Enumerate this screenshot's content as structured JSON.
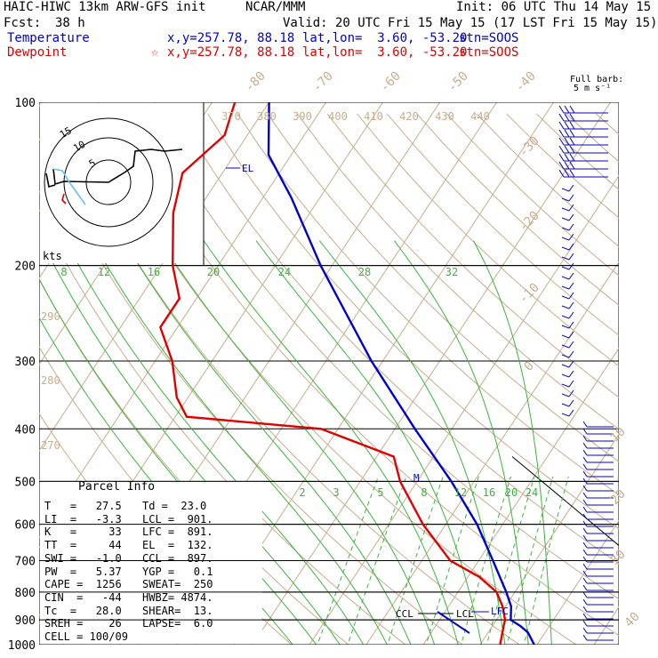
{
  "header": {
    "model": "HAIC-HIWC 13km ARW-GFS init",
    "org": "NCAR/MMM",
    "init": "Init: 06 UTC Thu 14 May 15",
    "fcst_label": "Fcst:",
    "fcst_value": "38 h",
    "valid": "Valid: 20 UTC Fri 15 May 15 (17 LST Fri 15 May 15)"
  },
  "legend": {
    "temperature": {
      "label": "Temperature",
      "xy": "x,y=257.78, 88.18",
      "latlon": "lat,lon=  3.60, -53.20",
      "stn": "stn=SOOS",
      "color": "#0000cc"
    },
    "dewpoint": {
      "label": "Dewpoint",
      "marker": "☆",
      "xy": "x,y=257.78, 88.18",
      "latlon": "lat,lon=  3.60, -53.20",
      "stn": "stn=SOOS",
      "color": "#e00000"
    }
  },
  "barb_legend": {
    "line1": "Full barb:",
    "line2": "5 m s⁻¹"
  },
  "hodograph": {
    "rings": [
      "5",
      "10",
      "15"
    ],
    "units": "kts"
  },
  "parcel": {
    "title": "Parcel Info",
    "rows": [
      [
        "T   =   27.5",
        "Td =  23.0"
      ],
      [
        "LI  =   -3.3",
        "LCL =  901."
      ],
      [
        "K   =     33",
        "LFC =  891."
      ],
      [
        "TT  =     44",
        "EL  =  132."
      ],
      [
        "SWI =   -1.0",
        "CCL =  897."
      ],
      [
        "PW  =   5.37",
        "YGP =   0.1"
      ],
      [
        "CAPE =  1256",
        "SWEAT=  250"
      ],
      [
        "CIN  =   -44",
        "HWBZ= 4874."
      ],
      [
        "Tc  =   28.0",
        "SHEAR=  13."
      ],
      [
        "SREH =    26",
        "LAPSE=  6.0"
      ],
      [
        "CELL = 100/09",
        ""
      ]
    ]
  },
  "labels": {
    "el": "EL",
    "ccl": "CCL",
    "lcl": "LCL",
    "lfc": "LFC",
    "m": "M"
  },
  "chart_data": {
    "type": "line",
    "title": "",
    "xlabel": "",
    "ylabel": "",
    "pressure_levels": [
      100,
      200,
      300,
      400,
      500,
      600,
      700,
      800,
      900,
      1000
    ],
    "isotherms": [
      -80,
      -70,
      -60,
      -50,
      -40,
      -30,
      -20,
      -10,
      0,
      10,
      20,
      30,
      40
    ],
    "theta_labels": [
      370,
      380,
      390,
      400,
      410,
      420,
      430,
      440
    ],
    "theta_left_labels": [
      290,
      280,
      270
    ],
    "mixing_ratio_upper": [
      8,
      12,
      16,
      20,
      24,
      28,
      32
    ],
    "mixing_ratio_lower": [
      2,
      3,
      5,
      8,
      12,
      16,
      20,
      24
    ],
    "series": [
      {
        "name": "Temperature",
        "color": "#0000cc",
        "points": [
          [
            1000,
            29.5
          ],
          [
            950,
            27
          ],
          [
            925,
            25
          ],
          [
            900,
            22.5
          ],
          [
            850,
            21
          ],
          [
            800,
            18.5
          ],
          [
            700,
            12.5
          ],
          [
            600,
            5.5
          ],
          [
            500,
            -4
          ],
          [
            400,
            -16.5
          ],
          [
            300,
            -32
          ],
          [
            250,
            -41
          ],
          [
            200,
            -52
          ],
          [
            150,
            -65
          ],
          [
            125,
            -74
          ],
          [
            100,
            -80
          ]
        ]
      },
      {
        "name": "Dewpoint",
        "color": "#e00000",
        "points": [
          [
            1000,
            23.5
          ],
          [
            925,
            22
          ],
          [
            900,
            21.5
          ],
          [
            850,
            19.5
          ],
          [
            800,
            16.8
          ],
          [
            750,
            12
          ],
          [
            700,
            5
          ],
          [
            600,
            -4
          ],
          [
            500,
            -13
          ],
          [
            450,
            -17
          ],
          [
            400,
            -33
          ],
          [
            380,
            -58
          ],
          [
            350,
            -62
          ],
          [
            300,
            -67
          ],
          [
            260,
            -73
          ],
          [
            230,
            -73
          ],
          [
            200,
            -78
          ],
          [
            160,
            -84
          ],
          [
            135,
            -87
          ],
          [
            115,
            -84
          ],
          [
            100,
            -86
          ]
        ]
      }
    ]
  }
}
